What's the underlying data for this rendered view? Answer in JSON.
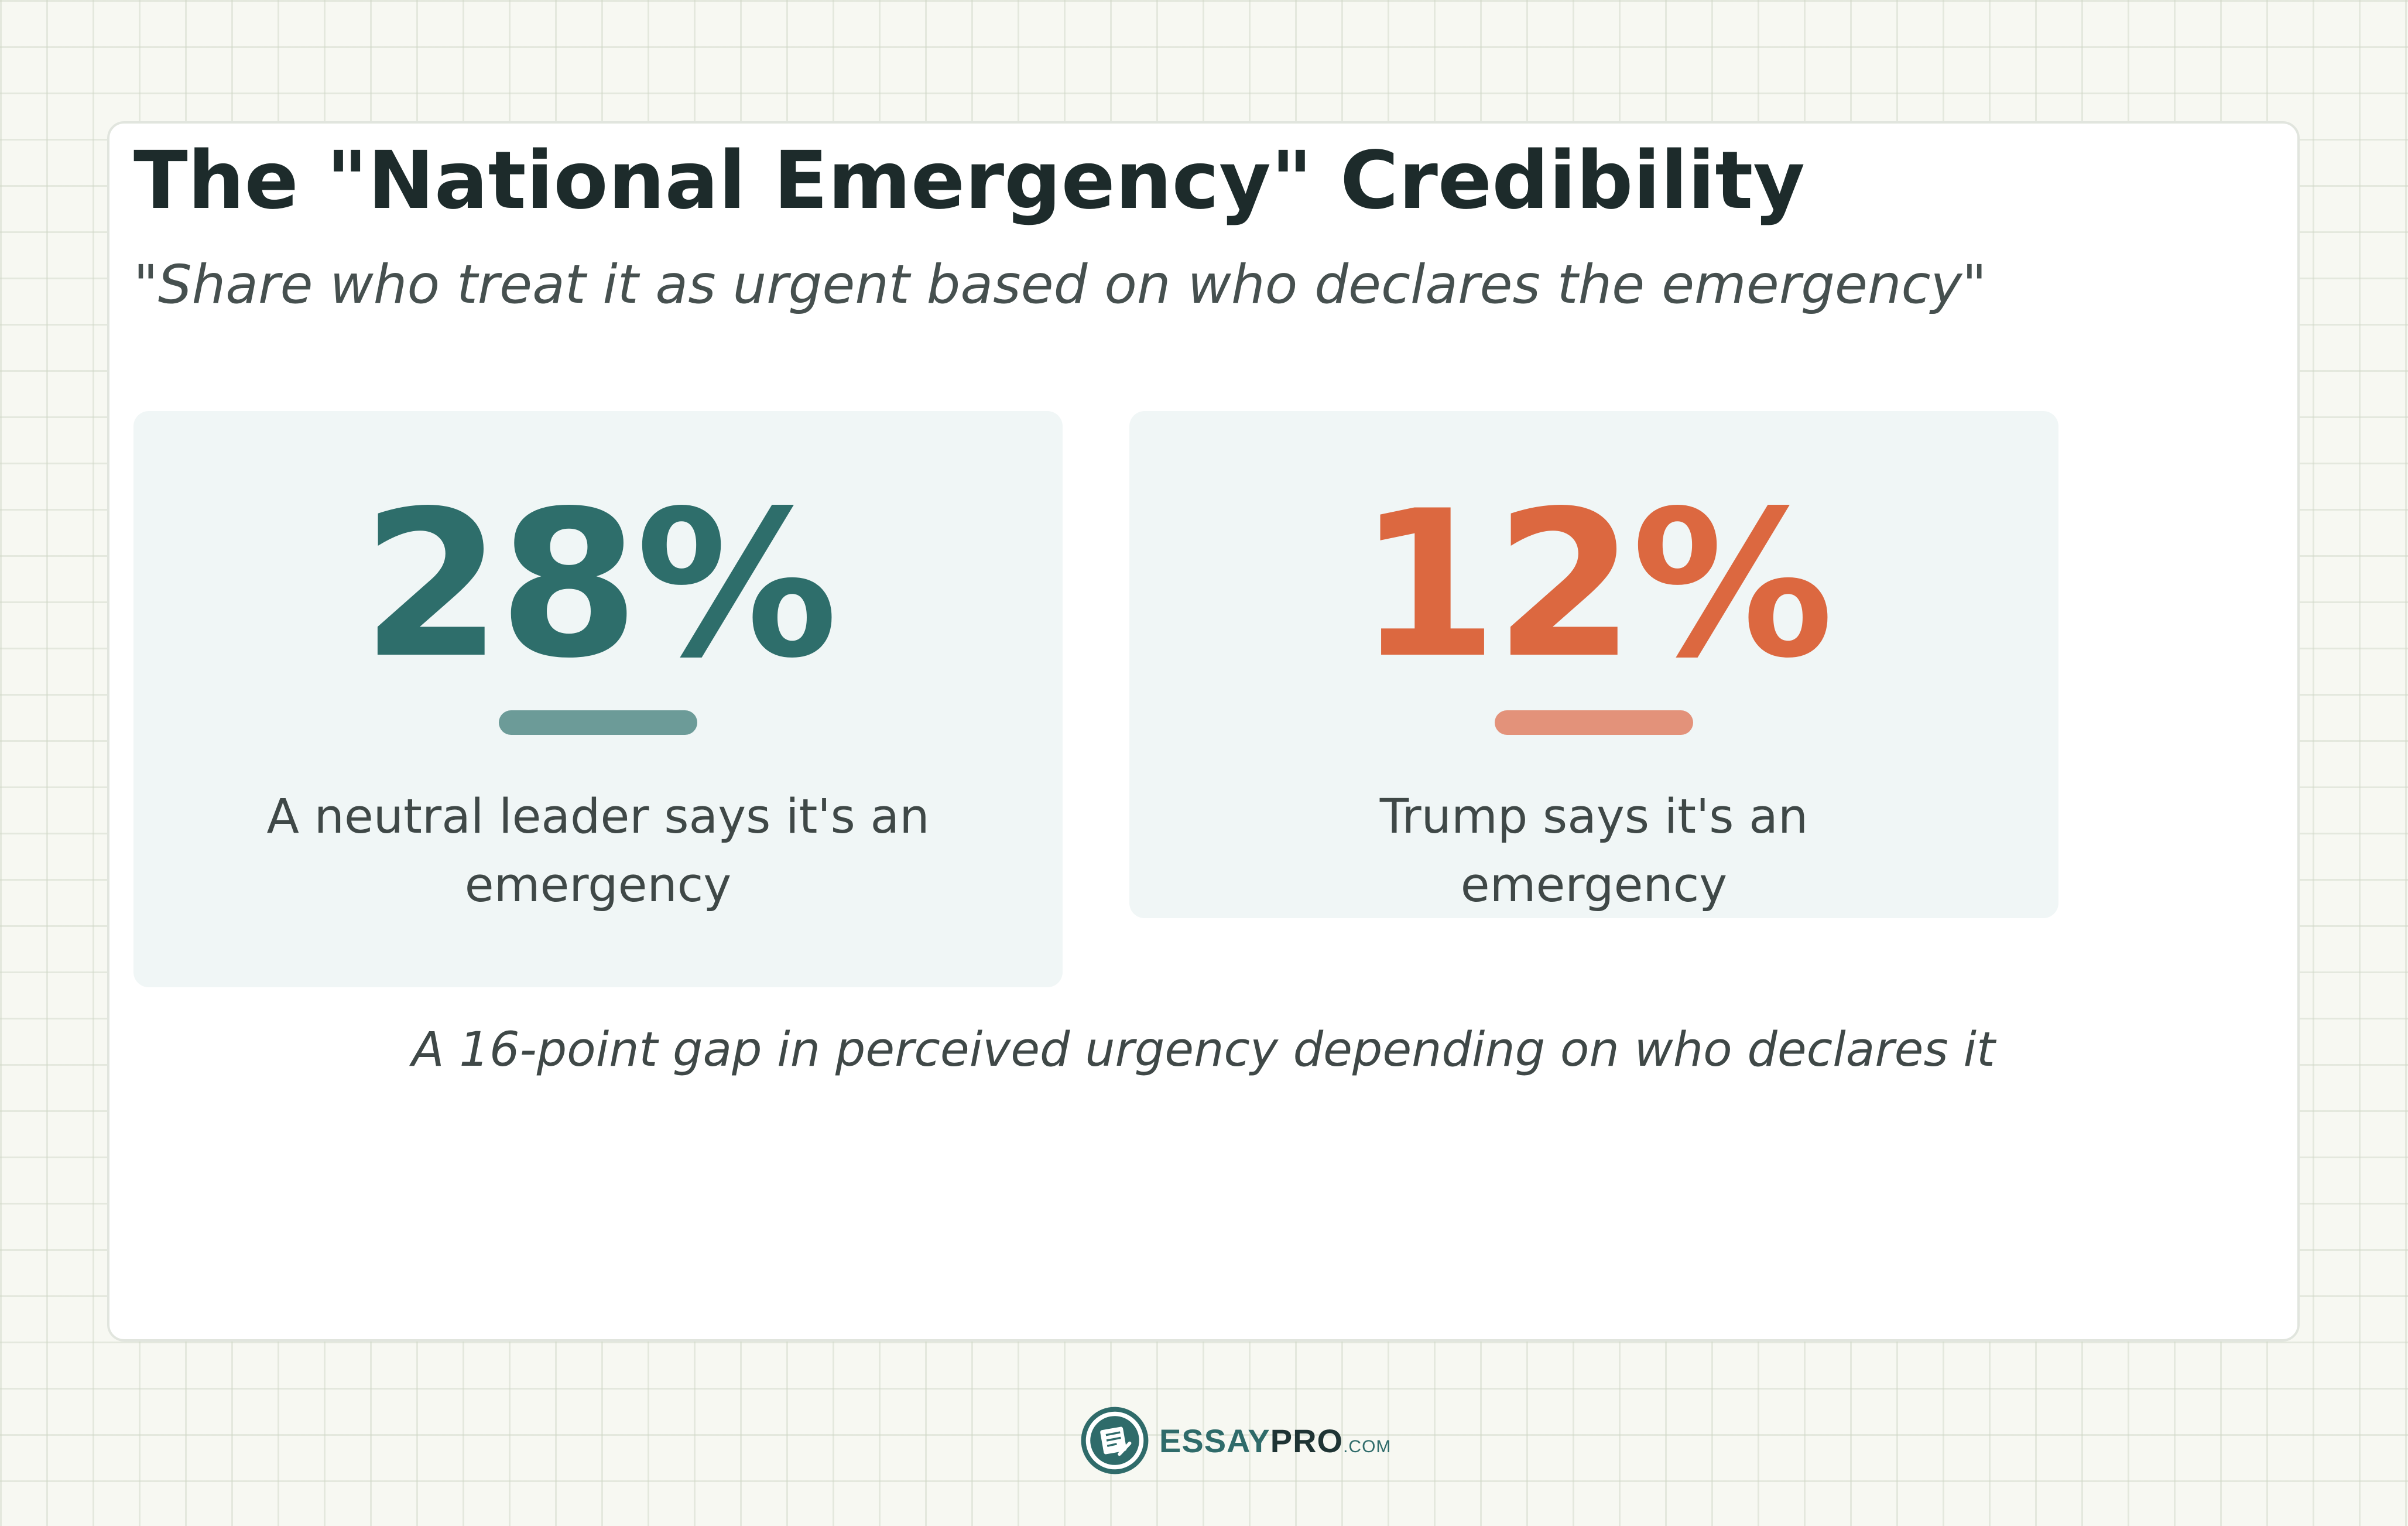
{
  "header": {
    "title": "The \"National Emergency\" Credibility",
    "subtitle": "\"Share who treat it as urgent based on who declares the emergency\""
  },
  "chart_data": {
    "type": "table",
    "stats": [
      {
        "value": 28,
        "display": "28%",
        "label": "A neutral leader says it's an emergency",
        "color": "#2e6e6b",
        "rule_color": "#6c9b98"
      },
      {
        "value": 12,
        "display": "12%",
        "label": "Trump says it's an emergency",
        "color": "#dc6840",
        "rule_color": "#e3927a"
      }
    ],
    "note": "A 16-point gap in perceived urgency depending on who declares it"
  },
  "brand": {
    "icon": "notepad-pen-icon",
    "name_primary": "ESSAY",
    "name_secondary": "PRO",
    "suffix": ".COM",
    "color": "#2f6b6a"
  }
}
